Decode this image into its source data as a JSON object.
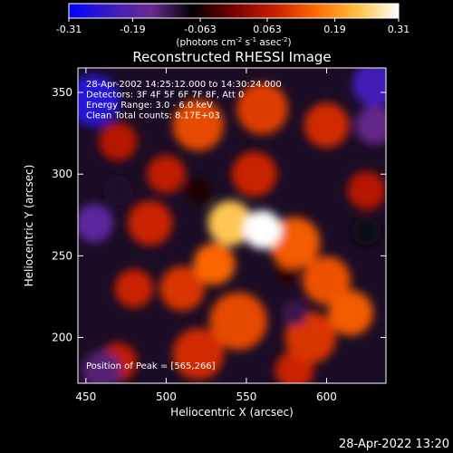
{
  "chart_data": {
    "type": "heatmap",
    "title": "Reconstructed RHESSI Image",
    "xlabel": "Heliocentric X (arcsec)",
    "ylabel": "Heliocentric Y (arcsec)",
    "xlim": [
      445,
      637
    ],
    "ylim": [
      172,
      365
    ],
    "x_ticks": [
      450,
      500,
      550,
      600
    ],
    "y_ticks": [
      200,
      250,
      300,
      350
    ],
    "colorbar": {
      "ticks": [
        -0.31,
        -0.19,
        -0.063,
        0.063,
        0.19,
        0.31
      ],
      "tick_labels": [
        "-0.31",
        "-0.19",
        "-0.063",
        "0.063",
        "0.19",
        "0.31"
      ],
      "units_prefix": "(photons cm",
      "units_sup1": "-2",
      "units_mid1": " s",
      "units_sup2": "-1",
      "units_mid2": " asec",
      "units_sup3": "-2",
      "units_suffix": ")",
      "range": [
        -0.31,
        0.31
      ],
      "colormap": [
        "#0000ff",
        "#3a1cc0",
        "#6a2a90",
        "#000000",
        "#7a0000",
        "#c81e00",
        "#ff6a00",
        "#ffc040",
        "#ffffff"
      ]
    },
    "annotations": [
      "28-Apr-2002 14:25:12.000 to 14:30:24.000",
      "Detectors: 3F 4F 5F 6F 7F 8F, Att 0",
      "Energy Range: 3.0 - 6.0 keV",
      "Clean     Total counts: 8.17E+03"
    ],
    "peak_label": "Position of Peak = [565,266]",
    "peak": [
      565,
      266
    ],
    "blobs": [
      {
        "x": 560,
        "y": 266,
        "v": 0.31,
        "s": 12
      },
      {
        "x": 540,
        "y": 270,
        "v": 0.24,
        "s": 14
      },
      {
        "x": 580,
        "y": 258,
        "v": 0.14,
        "s": 16
      },
      {
        "x": 530,
        "y": 245,
        "v": 0.15,
        "s": 13
      },
      {
        "x": 600,
        "y": 235,
        "v": 0.13,
        "s": 15
      },
      {
        "x": 615,
        "y": 215,
        "v": 0.14,
        "s": 14
      },
      {
        "x": 590,
        "y": 200,
        "v": 0.1,
        "s": 16
      },
      {
        "x": 545,
        "y": 210,
        "v": 0.12,
        "s": 18
      },
      {
        "x": 510,
        "y": 230,
        "v": 0.1,
        "s": 14
      },
      {
        "x": 520,
        "y": 190,
        "v": 0.09,
        "s": 16
      },
      {
        "x": 480,
        "y": 230,
        "v": 0.08,
        "s": 12
      },
      {
        "x": 490,
        "y": 270,
        "v": 0.08,
        "s": 14
      },
      {
        "x": 500,
        "y": 300,
        "v": 0.07,
        "s": 12
      },
      {
        "x": 520,
        "y": 330,
        "v": 0.12,
        "s": 16
      },
      {
        "x": 560,
        "y": 340,
        "v": 0.11,
        "s": 16
      },
      {
        "x": 600,
        "y": 330,
        "v": 0.09,
        "s": 14
      },
      {
        "x": 625,
        "y": 290,
        "v": 0.06,
        "s": 12
      },
      {
        "x": 470,
        "y": 320,
        "v": 0.06,
        "s": 12
      },
      {
        "x": 470,
        "y": 185,
        "v": 0.07,
        "s": 12
      },
      {
        "x": 580,
        "y": 180,
        "v": 0.08,
        "s": 12
      },
      {
        "x": 555,
        "y": 300,
        "v": 0.08,
        "s": 14
      },
      {
        "x": 455,
        "y": 345,
        "v": -0.26,
        "s": 16
      },
      {
        "x": 630,
        "y": 355,
        "v": -0.22,
        "s": 14
      },
      {
        "x": 455,
        "y": 270,
        "v": -0.18,
        "s": 12
      },
      {
        "x": 460,
        "y": 180,
        "v": -0.14,
        "s": 12
      },
      {
        "x": 630,
        "y": 330,
        "v": -0.15,
        "s": 12
      },
      {
        "x": 625,
        "y": 265,
        "v": -0.09,
        "s": 9
      },
      {
        "x": 580,
        "y": 215,
        "v": -0.12,
        "s": 8
      },
      {
        "x": 520,
        "y": 290,
        "v": -0.06,
        "s": 8
      },
      {
        "x": 470,
        "y": 290,
        "v": -0.1,
        "s": 9
      },
      {
        "x": 575,
        "y": 240,
        "v": -0.05,
        "s": 7
      }
    ]
  },
  "footer": {
    "timestamp": "28-Apr-2022 13:20"
  }
}
